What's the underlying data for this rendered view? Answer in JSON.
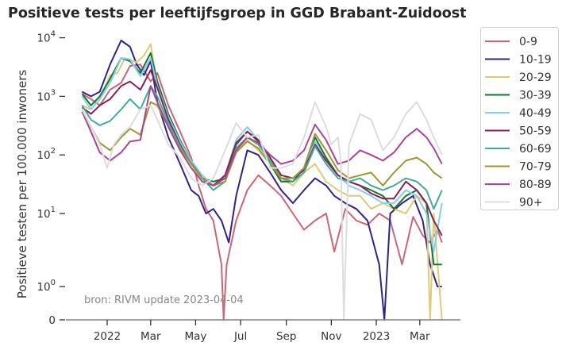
{
  "chart_data": {
    "type": "line",
    "title": "Positieve tests per leeftijfsgroep in GGD Brabant-Zuidoost",
    "ylabel": "Positieve testen per 100.000 inwoners",
    "xlabel": "",
    "yscale": "symlog",
    "ylim": [
      0,
      12000
    ],
    "y_ticks": [
      {
        "value": 10000,
        "base": "10",
        "exp": "4"
      },
      {
        "value": 1000,
        "base": "10",
        "exp": "3"
      },
      {
        "value": 100,
        "base": "10",
        "exp": "2"
      },
      {
        "value": 10,
        "base": "10",
        "exp": "1"
      },
      {
        "value": 1,
        "base": "10",
        "exp": "0"
      },
      {
        "value": 0,
        "base": "0",
        "exp": ""
      }
    ],
    "x_ticks": [
      {
        "date": "2022-01-01",
        "label": "2022"
      },
      {
        "date": "2022-03-01",
        "label": "Mar"
      },
      {
        "date": "2022-05-01",
        "label": "May"
      },
      {
        "date": "2022-07-01",
        "label": "Jul"
      },
      {
        "date": "2022-09-01",
        "label": "Sep"
      },
      {
        "date": "2022-11-01",
        "label": "Nov"
      },
      {
        "date": "2023-01-01",
        "label": "2023"
      },
      {
        "date": "2023-03-01",
        "label": "Mar"
      }
    ],
    "xlim": [
      "2021-11-01",
      "2023-04-25"
    ],
    "annotation": "bron: RIVM update 2023-04-04",
    "legend_position": "outside-right-top",
    "series": [
      {
        "name": "0-9",
        "color": "#cc6677",
        "dates": [
          "2021-11-28",
          "2021-12-10",
          "2021-12-22",
          "2022-01-05",
          "2022-01-20",
          "2022-02-01",
          "2022-02-15",
          "2022-03-01",
          "2022-03-10",
          "2022-03-25",
          "2022-04-10",
          "2022-04-25",
          "2022-05-05",
          "2022-05-15",
          "2022-05-25",
          "2022-06-05",
          "2022-06-08",
          "2022-06-12",
          "2022-06-25",
          "2022-07-10",
          "2022-07-25",
          "2022-08-10",
          "2022-08-25",
          "2022-09-10",
          "2022-09-25",
          "2022-10-10",
          "2022-10-25",
          "2022-11-05",
          "2022-11-20",
          "2022-12-05",
          "2022-12-20",
          "2023-01-05",
          "2023-01-20",
          "2023-02-05",
          "2023-02-20",
          "2023-03-05",
          "2023-03-15",
          "2023-03-25",
          "2023-03-31"
        ],
        "values": [
          1100,
          900,
          700,
          1300,
          1700,
          3300,
          3500,
          1800,
          2500,
          700,
          250,
          90,
          30,
          12,
          8,
          2,
          0,
          2,
          8,
          25,
          45,
          30,
          20,
          10,
          6,
          8,
          10,
          3,
          12,
          8,
          7,
          10,
          8,
          2,
          9,
          5,
          4,
          6,
          4
        ]
      },
      {
        "name": "10-19",
        "color": "#332288",
        "dates": [
          "2021-11-28",
          "2021-12-10",
          "2021-12-22",
          "2022-01-05",
          "2022-01-20",
          "2022-02-01",
          "2022-02-10",
          "2022-02-20",
          "2022-03-01",
          "2022-03-10",
          "2022-03-25",
          "2022-04-10",
          "2022-04-25",
          "2022-05-05",
          "2022-05-15",
          "2022-05-25",
          "2022-06-05",
          "2022-06-15",
          "2022-06-25",
          "2022-07-10",
          "2022-07-25",
          "2022-08-10",
          "2022-08-25",
          "2022-09-10",
          "2022-09-25",
          "2022-10-10",
          "2022-10-25",
          "2022-11-05",
          "2022-11-20",
          "2022-12-05",
          "2022-12-20",
          "2023-01-05",
          "2023-01-12",
          "2023-01-20",
          "2023-02-05",
          "2023-02-20",
          "2023-03-05",
          "2023-03-15",
          "2023-03-25",
          "2023-03-31"
        ],
        "values": [
          1200,
          1000,
          1200,
          3500,
          9000,
          7000,
          3500,
          2300,
          4000,
          800,
          200,
          70,
          25,
          20,
          10,
          12,
          8,
          4,
          20,
          120,
          100,
          50,
          25,
          15,
          25,
          40,
          30,
          20,
          15,
          12,
          8,
          2,
          0,
          10,
          15,
          20,
          8,
          2,
          1,
          1
        ]
      },
      {
        "name": "20-29",
        "color": "#ddcc77",
        "dates": [
          "2021-11-28",
          "2021-12-10",
          "2021-12-22",
          "2022-01-05",
          "2022-01-15",
          "2022-01-25",
          "2022-02-10",
          "2022-02-20",
          "2022-03-01",
          "2022-03-10",
          "2022-03-25",
          "2022-04-10",
          "2022-04-25",
          "2022-05-10",
          "2022-05-25",
          "2022-06-10",
          "2022-06-25",
          "2022-07-10",
          "2022-07-25",
          "2022-08-10",
          "2022-08-25",
          "2022-09-10",
          "2022-09-25",
          "2022-10-10",
          "2022-10-25",
          "2022-11-10",
          "2022-11-25",
          "2022-12-10",
          "2022-12-25",
          "2023-01-10",
          "2023-01-25",
          "2023-02-10",
          "2023-02-25",
          "2023-03-10",
          "2023-03-15",
          "2023-03-20",
          "2023-03-31"
        ],
        "values": [
          700,
          600,
          900,
          2300,
          2500,
          4500,
          3800,
          5000,
          7800,
          1500,
          400,
          150,
          70,
          35,
          30,
          40,
          120,
          180,
          120,
          70,
          40,
          30,
          50,
          70,
          35,
          25,
          20,
          20,
          12,
          15,
          12,
          10,
          20,
          15,
          0,
          10,
          0
        ]
      },
      {
        "name": "30-39",
        "color": "#117733",
        "dates": [
          "2021-11-28",
          "2021-12-10",
          "2021-12-22",
          "2022-01-05",
          "2022-01-20",
          "2022-02-01",
          "2022-02-15",
          "2022-03-01",
          "2022-03-10",
          "2022-03-25",
          "2022-04-10",
          "2022-04-25",
          "2022-05-10",
          "2022-05-25",
          "2022-06-10",
          "2022-06-25",
          "2022-07-10",
          "2022-07-25",
          "2022-08-10",
          "2022-08-25",
          "2022-09-10",
          "2022-09-25",
          "2022-10-10",
          "2022-10-25",
          "2022-11-10",
          "2022-11-25",
          "2022-12-10",
          "2022-12-25",
          "2023-01-10",
          "2023-01-25",
          "2023-02-10",
          "2023-02-25",
          "2023-03-10",
          "2023-03-20",
          "2023-03-31"
        ],
        "values": [
          1100,
          700,
          1000,
          2000,
          4500,
          4000,
          2500,
          5500,
          1800,
          500,
          180,
          80,
          40,
          35,
          40,
          150,
          250,
          170,
          70,
          35,
          35,
          60,
          200,
          90,
          45,
          35,
          30,
          25,
          20,
          12,
          20,
          25,
          15,
          2,
          2
        ]
      },
      {
        "name": "40-49",
        "color": "#88ccee",
        "dates": [
          "2021-11-28",
          "2021-12-10",
          "2021-12-22",
          "2022-01-05",
          "2022-01-20",
          "2022-02-01",
          "2022-02-15",
          "2022-03-01",
          "2022-03-10",
          "2022-03-25",
          "2022-04-10",
          "2022-04-25",
          "2022-05-10",
          "2022-05-25",
          "2022-06-10",
          "2022-06-25",
          "2022-07-10",
          "2022-07-25",
          "2022-08-10",
          "2022-08-25",
          "2022-09-10",
          "2022-09-25",
          "2022-10-10",
          "2022-10-25",
          "2022-11-10",
          "2022-11-25",
          "2022-12-10",
          "2022-12-25",
          "2023-01-10",
          "2023-01-25",
          "2023-02-10",
          "2023-02-25",
          "2023-03-10",
          "2023-03-20",
          "2023-03-31"
        ],
        "values": [
          1000,
          600,
          900,
          1700,
          4500,
          4300,
          2200,
          4500,
          1500,
          450,
          170,
          80,
          45,
          30,
          45,
          180,
          300,
          180,
          80,
          40,
          40,
          60,
          170,
          80,
          45,
          30,
          25,
          20,
          15,
          15,
          25,
          20,
          10,
          3,
          15
        ]
      },
      {
        "name": "50-59",
        "color": "#882255",
        "dates": [
          "2021-11-28",
          "2021-12-10",
          "2021-12-22",
          "2022-01-05",
          "2022-01-20",
          "2022-02-01",
          "2022-02-15",
          "2022-03-01",
          "2022-03-10",
          "2022-03-25",
          "2022-04-10",
          "2022-04-25",
          "2022-05-10",
          "2022-05-25",
          "2022-06-10",
          "2022-06-25",
          "2022-07-10",
          "2022-07-25",
          "2022-08-10",
          "2022-08-25",
          "2022-09-10",
          "2022-09-25",
          "2022-10-10",
          "2022-10-25",
          "2022-11-10",
          "2022-11-25",
          "2022-12-10",
          "2022-12-25",
          "2023-01-10",
          "2023-01-25",
          "2023-02-10",
          "2023-02-25",
          "2023-03-10",
          "2023-03-20",
          "2023-03-31"
        ],
        "values": [
          650,
          500,
          700,
          900,
          1500,
          1800,
          1300,
          2800,
          1400,
          400,
          150,
          70,
          40,
          30,
          45,
          160,
          250,
          180,
          90,
          45,
          40,
          55,
          150,
          80,
          45,
          35,
          30,
          22,
          18,
          18,
          35,
          25,
          15,
          8,
          5
        ]
      },
      {
        "name": "60-69",
        "color": "#44aa99",
        "dates": [
          "2021-11-28",
          "2021-12-10",
          "2021-12-22",
          "2022-01-05",
          "2022-01-20",
          "2022-02-01",
          "2022-02-15",
          "2022-03-01",
          "2022-03-10",
          "2022-03-25",
          "2022-04-10",
          "2022-04-25",
          "2022-05-10",
          "2022-05-25",
          "2022-06-10",
          "2022-06-25",
          "2022-07-10",
          "2022-07-25",
          "2022-08-10",
          "2022-08-25",
          "2022-09-10",
          "2022-09-25",
          "2022-10-10",
          "2022-10-25",
          "2022-11-10",
          "2022-11-25",
          "2022-12-10",
          "2022-12-25",
          "2023-01-10",
          "2023-01-25",
          "2023-02-10",
          "2023-02-25",
          "2023-03-10",
          "2023-03-20",
          "2023-03-31"
        ],
        "values": [
          700,
          400,
          320,
          380,
          600,
          900,
          600,
          1500,
          1000,
          350,
          140,
          70,
          40,
          25,
          35,
          130,
          200,
          150,
          80,
          40,
          35,
          50,
          140,
          70,
          40,
          35,
          40,
          30,
          25,
          30,
          40,
          35,
          25,
          12,
          25
        ]
      },
      {
        "name": "70-79",
        "color": "#999933",
        "dates": [
          "2021-11-28",
          "2021-12-10",
          "2021-12-22",
          "2022-01-05",
          "2022-01-20",
          "2022-02-01",
          "2022-02-15",
          "2022-03-01",
          "2022-03-10",
          "2022-03-25",
          "2022-04-10",
          "2022-04-25",
          "2022-05-10",
          "2022-05-25",
          "2022-06-10",
          "2022-06-25",
          "2022-07-10",
          "2022-07-25",
          "2022-08-10",
          "2022-08-25",
          "2022-09-10",
          "2022-09-25",
          "2022-10-10",
          "2022-10-25",
          "2022-11-10",
          "2022-11-25",
          "2022-12-10",
          "2022-12-25",
          "2023-01-10",
          "2023-01-25",
          "2023-02-10",
          "2023-02-25",
          "2023-03-10",
          "2023-03-20",
          "2023-03-31"
        ],
        "values": [
          600,
          300,
          160,
          120,
          200,
          280,
          220,
          800,
          700,
          300,
          130,
          70,
          40,
          30,
          35,
          110,
          170,
          130,
          70,
          40,
          40,
          60,
          230,
          120,
          55,
          40,
          45,
          50,
          30,
          50,
          80,
          90,
          70,
          50,
          40
        ]
      },
      {
        "name": "80-89",
        "color": "#aa4499",
        "dates": [
          "2021-11-28",
          "2021-12-10",
          "2021-12-22",
          "2022-01-05",
          "2022-01-20",
          "2022-02-01",
          "2022-02-15",
          "2022-03-01",
          "2022-03-10",
          "2022-03-25",
          "2022-04-10",
          "2022-04-25",
          "2022-05-10",
          "2022-05-25",
          "2022-06-10",
          "2022-06-25",
          "2022-07-10",
          "2022-07-25",
          "2022-08-10",
          "2022-08-25",
          "2022-09-10",
          "2022-09-25",
          "2022-10-10",
          "2022-10-25",
          "2022-11-10",
          "2022-11-25",
          "2022-12-10",
          "2022-12-25",
          "2023-01-10",
          "2023-01-25",
          "2023-02-10",
          "2023-02-25",
          "2023-03-10",
          "2023-03-20",
          "2023-03-31"
        ],
        "values": [
          550,
          250,
          110,
          80,
          110,
          170,
          180,
          1500,
          800,
          300,
          120,
          60,
          35,
          30,
          40,
          120,
          200,
          160,
          100,
          70,
          80,
          120,
          330,
          180,
          70,
          80,
          120,
          100,
          80,
          110,
          200,
          280,
          200,
          130,
          70
        ]
      },
      {
        "name": "90+",
        "color": "#dddddd",
        "dates": [
          "2021-11-28",
          "2021-12-10",
          "2021-12-22",
          "2022-01-01",
          "2022-01-10",
          "2022-01-20",
          "2022-02-01",
          "2022-02-15",
          "2022-03-01",
          "2022-03-10",
          "2022-03-25",
          "2022-04-10",
          "2022-04-25",
          "2022-05-10",
          "2022-05-25",
          "2022-06-10",
          "2022-06-25",
          "2022-07-10",
          "2022-07-25",
          "2022-08-10",
          "2022-08-25",
          "2022-09-10",
          "2022-09-25",
          "2022-10-10",
          "2022-10-25",
          "2022-11-01",
          "2022-11-10",
          "2022-11-14",
          "2022-11-18",
          "2022-11-25",
          "2022-12-10",
          "2022-12-25",
          "2023-01-10",
          "2023-01-25",
          "2023-02-10",
          "2023-02-25",
          "2023-03-10",
          "2023-03-20",
          "2023-03-31"
        ],
        "values": [
          600,
          300,
          150,
          60,
          150,
          220,
          300,
          600,
          700,
          400,
          150,
          90,
          40,
          30,
          40,
          120,
          350,
          200,
          220,
          60,
          60,
          70,
          200,
          800,
          300,
          150,
          200,
          80,
          0,
          150,
          500,
          400,
          120,
          200,
          500,
          800,
          400,
          200,
          100
        ]
      }
    ]
  }
}
